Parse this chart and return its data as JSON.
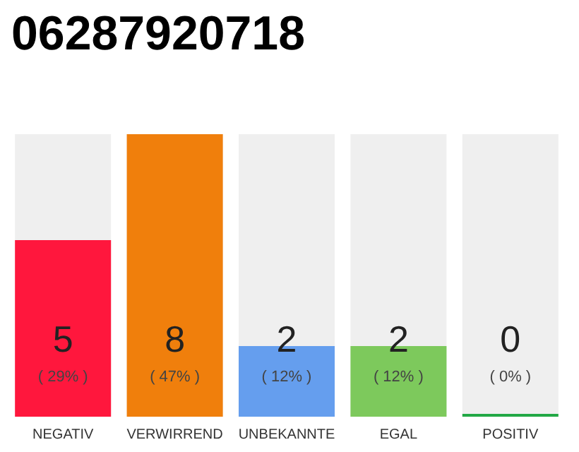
{
  "chart_data": {
    "type": "bar",
    "title": "06287920718",
    "categories": [
      "NEGATIV",
      "VERWIRREND",
      "UNBEKANNTE",
      "EGAL",
      "POSITIV"
    ],
    "values": [
      5,
      8,
      2,
      2,
      0
    ],
    "colors": [
      "#ff173d",
      "#f07f0c",
      "#659eee",
      "#7dc95c",
      "#22a845"
    ],
    "value_labels": [
      "5",
      "8",
      "2",
      "2",
      "0"
    ],
    "annotations": [
      "( 29% )",
      "( 47% )",
      "( 12% )",
      "( 12% )",
      "( 0% )"
    ]
  }
}
